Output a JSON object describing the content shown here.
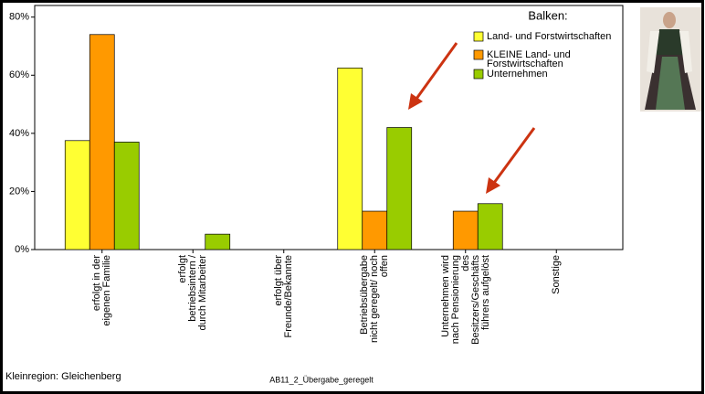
{
  "chart_data": {
    "type": "bar",
    "categories": [
      "erfolgt in der eigenen Familie",
      "erfolgt betriebsintern / durch Mitarbeiter",
      "erfolgt über Freunde/Bekannte",
      "Betriebsübergabe nicht geregelt/ noch offen",
      "Unternehmen wird nach Pensionierung des Besitzers/Geschäftsführers aufgelöst",
      "Sonstige"
    ],
    "series": [
      {
        "name": "Land- und Forstwirtschaften",
        "color": "#ffff33",
        "values": [
          37.5,
          0,
          0,
          62.5,
          0,
          0
        ]
      },
      {
        "name": "KLEINE Land- und Forstwirtschaften",
        "color": "#ff9900",
        "values": [
          74,
          0,
          0,
          13.2,
          13.2,
          0
        ]
      },
      {
        "name": "Unternehmen",
        "color": "#99cc00",
        "values": [
          37,
          5.3,
          0,
          42,
          15.8,
          0
        ]
      }
    ],
    "ylim": [
      0,
      84
    ],
    "yticks": [
      {
        "value": 0,
        "label": "0%"
      },
      {
        "value": 20,
        "label": "20%"
      },
      {
        "value": 40,
        "label": "40%"
      },
      {
        "value": 60,
        "label": "60%"
      },
      {
        "value": 80,
        "label": "80%"
      }
    ],
    "legend_title": "Balken:",
    "x_label": "AB11_2_Übergabe_geregelt",
    "annotation": "Kleinregion: Gleichenberg",
    "grid": false
  }
}
